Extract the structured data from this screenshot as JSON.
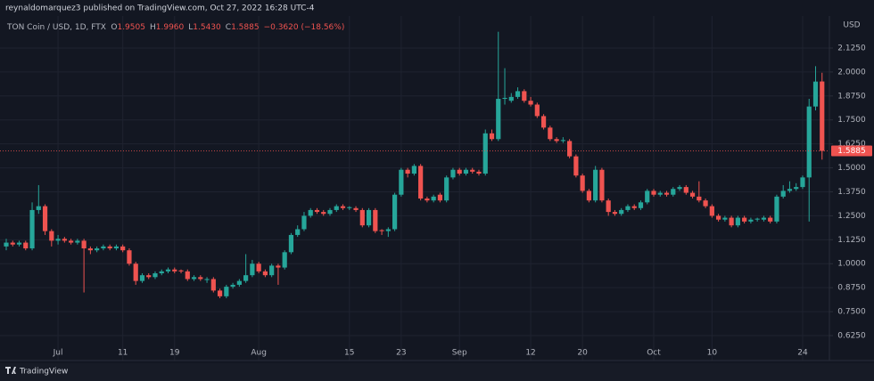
{
  "chart_data": {
    "type": "candlestick",
    "title": "reynaldomarquez3 published on TradingView.com, Oct 27, 2022 16:28 UTC-4",
    "legend": {
      "symbol": "TON Coin / USD, 1D, FTX",
      "fields": [
        {
          "key": "O",
          "value": "1.9505"
        },
        {
          "key": "H",
          "value": "1.9960"
        },
        {
          "key": "L",
          "value": "1.5430"
        },
        {
          "key": "C",
          "value": "1.5885"
        }
      ],
      "change": "−0.3620 (−18.56%)"
    },
    "y_axis_label": "USD",
    "footer": "TradingView",
    "categories": [
      null,
      null,
      null,
      null,
      null,
      null,
      null,
      null,
      "Jul",
      null,
      null,
      null,
      null,
      null,
      null,
      null,
      null,
      null,
      "11",
      null,
      null,
      null,
      null,
      null,
      null,
      null,
      "19",
      null,
      null,
      null,
      null,
      null,
      null,
      null,
      null,
      null,
      null,
      null,
      null,
      "Aug",
      null,
      null,
      null,
      null,
      null,
      null,
      null,
      null,
      null,
      null,
      null,
      null,
      null,
      "15",
      null,
      null,
      null,
      null,
      null,
      null,
      null,
      "23",
      null,
      null,
      null,
      null,
      null,
      null,
      null,
      null,
      "Sep",
      null,
      null,
      null,
      null,
      null,
      null,
      null,
      null,
      null,
      null,
      "12",
      null,
      null,
      null,
      null,
      null,
      null,
      null,
      "20",
      null,
      null,
      null,
      null,
      null,
      null,
      null,
      null,
      null,
      null,
      "Oct",
      null,
      null,
      null,
      null,
      null,
      null,
      null,
      null,
      "10",
      null,
      null,
      null,
      null,
      null,
      null,
      null,
      null,
      null,
      null,
      null,
      null,
      null,
      "24",
      null,
      null,
      null
    ],
    "open": [
      1.09,
      1.11,
      1.1,
      1.11,
      1.08,
      1.28,
      1.3,
      1.17,
      1.12,
      1.13,
      1.12,
      1.11,
      1.12,
      1.08,
      1.07,
      1.08,
      1.09,
      1.08,
      1.09,
      1.07,
      1.0,
      0.91,
      0.94,
      0.93,
      0.95,
      0.96,
      0.97,
      0.965,
      0.96,
      0.92,
      0.93,
      0.915,
      0.92,
      0.86,
      0.83,
      0.88,
      0.89,
      0.91,
      0.94,
      1.0,
      0.96,
      0.94,
      0.99,
      0.98,
      1.06,
      1.15,
      1.18,
      1.25,
      1.28,
      1.27,
      1.26,
      1.28,
      1.3,
      1.29,
      1.29,
      1.28,
      1.2,
      1.28,
      1.175,
      1.17,
      1.18,
      1.36,
      1.49,
      1.47,
      1.51,
      1.34,
      1.33,
      1.36,
      1.33,
      1.45,
      1.49,
      1.47,
      1.49,
      1.48,
      1.47,
      1.68,
      1.65,
      1.86,
      1.85,
      1.87,
      1.9,
      1.85,
      1.83,
      1.77,
      1.71,
      1.65,
      1.64,
      1.64,
      1.56,
      1.46,
      1.38,
      1.33,
      1.49,
      1.33,
      1.27,
      1.26,
      1.28,
      1.3,
      1.29,
      1.32,
      1.38,
      1.36,
      1.37,
      1.36,
      1.39,
      1.4,
      1.37,
      1.35,
      1.33,
      1.3,
      1.25,
      1.23,
      1.24,
      1.2,
      1.24,
      1.22,
      1.23,
      1.23,
      1.24,
      1.22,
      1.35,
      1.38,
      1.39,
      1.4,
      1.45,
      1.82,
      1.9505
    ],
    "high": [
      1.13,
      1.12,
      1.12,
      1.12,
      1.32,
      1.41,
      1.31,
      1.18,
      1.15,
      1.14,
      1.13,
      1.13,
      1.13,
      1.09,
      1.09,
      1.1,
      1.1,
      1.1,
      1.1,
      1.08,
      1.01,
      0.95,
      0.95,
      0.96,
      0.97,
      0.98,
      0.98,
      0.97,
      0.97,
      0.94,
      0.94,
      0.93,
      0.93,
      0.87,
      0.89,
      0.9,
      0.92,
      1.05,
      1.02,
      1.01,
      0.97,
      1.0,
      1.0,
      1.07,
      1.16,
      1.2,
      1.27,
      1.29,
      1.29,
      1.28,
      1.29,
      1.31,
      1.31,
      1.3,
      1.3,
      1.29,
      1.29,
      1.29,
      1.18,
      1.19,
      1.37,
      1.5,
      1.5,
      1.52,
      1.52,
      1.35,
      1.36,
      1.37,
      1.46,
      1.5,
      1.5,
      1.5,
      1.5,
      1.49,
      1.7,
      1.7,
      2.21,
      2.02,
      1.89,
      1.92,
      1.91,
      1.87,
      1.84,
      1.78,
      1.72,
      1.66,
      1.66,
      1.65,
      1.57,
      1.47,
      1.39,
      1.51,
      1.5,
      1.34,
      1.28,
      1.29,
      1.31,
      1.31,
      1.33,
      1.39,
      1.39,
      1.38,
      1.38,
      1.4,
      1.41,
      1.41,
      1.38,
      1.43,
      1.34,
      1.31,
      1.26,
      1.25,
      1.25,
      1.25,
      1.25,
      1.24,
      1.24,
      1.25,
      1.25,
      1.36,
      1.41,
      1.43,
      1.42,
      1.46,
      1.86,
      2.03,
      1.996
    ],
    "low": [
      1.07,
      1.09,
      1.09,
      1.07,
      1.07,
      1.26,
      1.15,
      1.09,
      1.1,
      1.11,
      1.1,
      1.1,
      0.85,
      1.05,
      1.06,
      1.07,
      1.07,
      1.07,
      1.06,
      0.99,
      0.89,
      0.9,
      0.92,
      0.92,
      0.94,
      0.95,
      0.95,
      0.95,
      0.91,
      0.91,
      0.91,
      0.9,
      0.85,
      0.82,
      0.82,
      0.87,
      0.88,
      0.9,
      0.93,
      0.95,
      0.93,
      0.93,
      0.89,
      0.97,
      1.05,
      1.14,
      1.17,
      1.24,
      1.26,
      1.25,
      1.25,
      1.27,
      1.28,
      1.28,
      1.27,
      1.19,
      1.19,
      1.16,
      1.15,
      1.14,
      1.17,
      1.35,
      1.45,
      1.46,
      1.33,
      1.32,
      1.32,
      1.32,
      1.32,
      1.44,
      1.46,
      1.46,
      1.47,
      1.46,
      1.46,
      1.64,
      1.64,
      1.83,
      1.84,
      1.86,
      1.84,
      1.82,
      1.76,
      1.7,
      1.64,
      1.63,
      1.63,
      1.55,
      1.45,
      1.37,
      1.32,
      1.32,
      1.32,
      1.25,
      1.25,
      1.25,
      1.27,
      1.28,
      1.28,
      1.31,
      1.35,
      1.35,
      1.35,
      1.35,
      1.38,
      1.36,
      1.34,
      1.32,
      1.29,
      1.24,
      1.22,
      1.22,
      1.19,
      1.19,
      1.21,
      1.21,
      1.22,
      1.22,
      1.21,
      1.21,
      1.34,
      1.37,
      1.38,
      1.39,
      1.22,
      1.8,
      1.543
    ],
    "close": [
      1.11,
      1.1,
      1.11,
      1.08,
      1.28,
      1.3,
      1.17,
      1.12,
      1.13,
      1.12,
      1.11,
      1.12,
      1.08,
      1.07,
      1.08,
      1.09,
      1.08,
      1.09,
      1.07,
      1.0,
      0.91,
      0.94,
      0.93,
      0.95,
      0.96,
      0.97,
      0.96,
      0.96,
      0.92,
      0.93,
      0.92,
      0.92,
      0.86,
      0.83,
      0.88,
      0.89,
      0.91,
      0.94,
      1.0,
      0.96,
      0.94,
      0.99,
      0.98,
      1.06,
      1.15,
      1.18,
      1.25,
      1.28,
      1.27,
      1.26,
      1.28,
      1.3,
      1.29,
      1.295,
      1.28,
      1.2,
      1.28,
      1.17,
      1.17,
      1.18,
      1.36,
      1.49,
      1.47,
      1.51,
      1.34,
      1.33,
      1.35,
      1.33,
      1.45,
      1.49,
      1.47,
      1.49,
      1.48,
      1.47,
      1.68,
      1.65,
      1.86,
      1.865,
      1.87,
      1.9,
      1.85,
      1.83,
      1.77,
      1.71,
      1.65,
      1.64,
      1.645,
      1.56,
      1.46,
      1.38,
      1.33,
      1.49,
      1.33,
      1.27,
      1.26,
      1.28,
      1.3,
      1.29,
      1.32,
      1.38,
      1.36,
      1.37,
      1.36,
      1.39,
      1.4,
      1.37,
      1.35,
      1.33,
      1.3,
      1.25,
      1.23,
      1.24,
      1.2,
      1.24,
      1.22,
      1.23,
      1.235,
      1.24,
      1.22,
      1.35,
      1.38,
      1.39,
      1.4,
      1.45,
      1.82,
      1.95,
      1.5885
    ],
    "up_color": "#26a69a",
    "down_color": "#ef5350",
    "ylim": [
      0.495,
      2.292
    ],
    "yticks": [
      {
        "value": 0.625,
        "label": "0.6250"
      },
      {
        "value": 0.75,
        "label": "0.7500"
      },
      {
        "value": 0.875,
        "label": "0.8750"
      },
      {
        "value": 1.0,
        "label": "1.0000"
      },
      {
        "value": 1.125,
        "label": "1.1250"
      },
      {
        "value": 1.25,
        "label": "1.2500"
      },
      {
        "value": 1.375,
        "label": "1.3750"
      },
      {
        "value": 1.5,
        "label": "1.5000"
      },
      {
        "value": 1.625,
        "label": "1.6250"
      },
      {
        "value": 1.75,
        "label": "1.7500"
      },
      {
        "value": 1.875,
        "label": "1.8750"
      },
      {
        "value": 2.0,
        "label": "2.0000"
      },
      {
        "value": 2.125,
        "label": "2.1250"
      }
    ],
    "grid": true
  }
}
